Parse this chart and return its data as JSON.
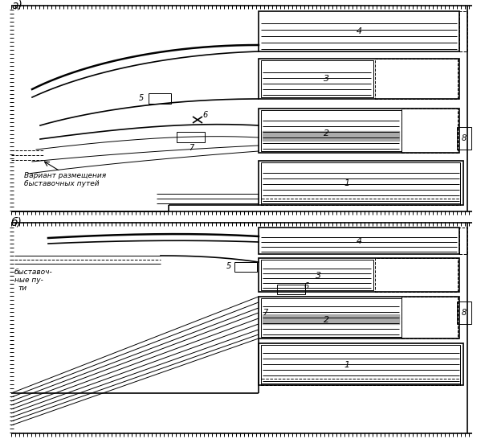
{
  "bg_color": "#ffffff",
  "fig_width": 6.04,
  "fig_height": 5.51,
  "dpi": 100,
  "label_a": "а)",
  "label_b": "б)",
  "text_a_line1": "Вариант размещения",
  "text_a_line2": "быставочных путей",
  "text_b_line1": "быставоч-",
  "text_b_line2": "ные пу-",
  "text_b_line3": "ти"
}
